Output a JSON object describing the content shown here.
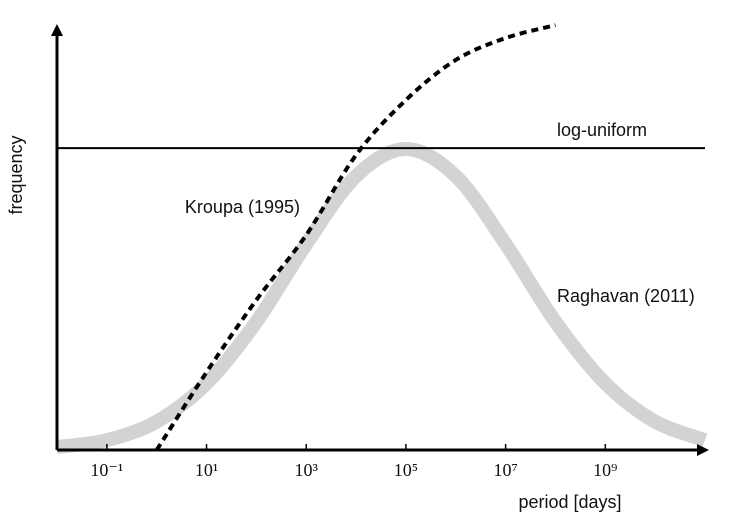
{
  "chart_data": {
    "type": "line",
    "xlabel": "period [days]",
    "ylabel": "frequency",
    "xscale": "log",
    "xlim": [
      0.01,
      100000000000
    ],
    "ylim": [
      0,
      1
    ],
    "xticks": [
      {
        "value": 0.1,
        "label": "10⁻¹"
      },
      {
        "value": 10,
        "label": "10¹"
      },
      {
        "value": 1000,
        "label": "10³"
      },
      {
        "value": 100000,
        "label": "10⁵"
      },
      {
        "value": 10000000,
        "label": "10⁷"
      },
      {
        "value": 1000000000,
        "label": "10⁹"
      }
    ],
    "series": [
      {
        "name": "Raghavan (2011)",
        "color": "#d3d3d3",
        "linestyle": "solid",
        "x": [
          0.01,
          0.1,
          1,
          10,
          100,
          1000,
          10000,
          100000,
          1000000,
          10000000,
          100000000,
          1000000000,
          10000000000,
          100000000000
        ],
        "values": [
          0.007,
          0.023,
          0.066,
          0.155,
          0.298,
          0.479,
          0.637,
          0.7,
          0.637,
          0.479,
          0.298,
          0.155,
          0.066,
          0.023
        ]
      },
      {
        "name": "log-uniform",
        "color": "#000000",
        "linestyle": "solid",
        "x": [
          0.01,
          100000000000
        ],
        "values": [
          0.702,
          0.702
        ]
      },
      {
        "name": "Kroupa (1995)",
        "color": "#000000",
        "linestyle": "dashed",
        "x": [
          1,
          10,
          100,
          1000,
          10000,
          100000,
          1000000,
          10000000,
          100000000
        ],
        "values": [
          0,
          0.181,
          0.349,
          0.5,
          0.686,
          0.814,
          0.907,
          0.958,
          0.988
        ]
      }
    ]
  }
}
